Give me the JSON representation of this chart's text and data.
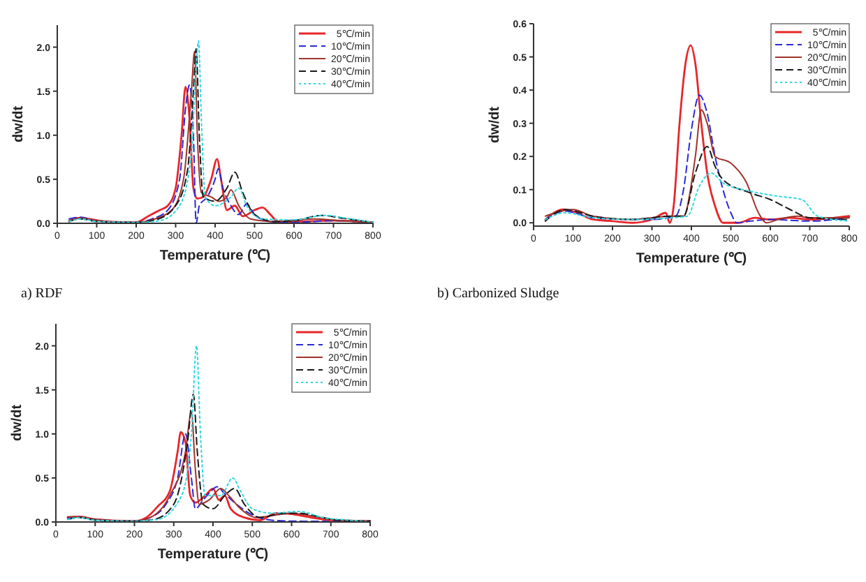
{
  "chart_data": [
    {
      "type": "line",
      "title": "a) RDF",
      "xlabel": "Temperature (℃)",
      "ylabel": "dw/dt",
      "xlim": [
        0,
        800
      ],
      "xticks": [
        0,
        100,
        200,
        300,
        400,
        500,
        600,
        700,
        800
      ],
      "ylim": [
        0,
        2.25
      ],
      "yticks": [
        {
          "value": 0,
          "label": "0.0"
        },
        {
          "value": 0.5,
          "label": "0.5"
        },
        {
          "value": 1,
          "label": "1.0"
        },
        {
          "value": 1.5,
          "label": "1.5"
        },
        {
          "value": 2,
          "label": "2.0"
        }
      ],
      "legend": "top right",
      "grid": false,
      "series": [
        {
          "name": "5℃/min",
          "color": "#e8262a",
          "line_style": "solid",
          "x": [
            30,
            50,
            80,
            120,
            200,
            230,
            260,
            280,
            300,
            315,
            325,
            335,
            345,
            355,
            370,
            390,
            405,
            415,
            430,
            450,
            470,
            500,
            520,
            540,
            560,
            600,
            700,
            800
          ],
          "values": [
            0.02,
            0.06,
            0.05,
            0.02,
            0.01,
            0.08,
            0.15,
            0.2,
            0.4,
            1.0,
            1.55,
            1.2,
            0.4,
            0.28,
            0.3,
            0.5,
            0.73,
            0.5,
            0.15,
            0.2,
            0.08,
            0.15,
            0.18,
            0.1,
            0.02,
            0.02,
            0.03,
            0.01
          ]
        },
        {
          "name": "10℃/min",
          "color": "#2a2ad6",
          "line_style": "dashed",
          "x": [
            30,
            60,
            100,
            200,
            240,
            280,
            310,
            325,
            335,
            345,
            352,
            360,
            380,
            400,
            408,
            420,
            440,
            460,
            480,
            500,
            540,
            600,
            700,
            780,
            800
          ],
          "values": [
            0.05,
            0.07,
            0.03,
            0.01,
            0.05,
            0.15,
            0.5,
            1.3,
            1.57,
            1.0,
            0.0,
            0.2,
            0.3,
            0.5,
            0.62,
            0.4,
            0.2,
            0.1,
            0.22,
            0.1,
            0.02,
            0.01,
            0.03,
            0.01,
            0.0
          ]
        },
        {
          "name": "20℃/min",
          "color": "#a0322a",
          "line_style": "solid",
          "x": [
            30,
            60,
            100,
            200,
            240,
            290,
            320,
            340,
            348,
            355,
            365,
            390,
            410,
            430,
            440,
            460,
            490,
            550,
            650,
            720,
            800
          ],
          "values": [
            0.03,
            0.06,
            0.03,
            0.01,
            0.04,
            0.15,
            0.5,
            1.5,
            1.95,
            1.0,
            0.35,
            0.3,
            0.25,
            0.3,
            0.38,
            0.2,
            0.05,
            0.02,
            0.05,
            0.03,
            0.01
          ]
        },
        {
          "name": "30℃/min",
          "color": "#1a1a1a",
          "line_style": "dashed",
          "x": [
            30,
            60,
            100,
            200,
            250,
            300,
            330,
            345,
            352,
            360,
            370,
            400,
            430,
            450,
            470,
            500,
            550,
            600,
            670,
            720,
            800
          ],
          "values": [
            0.02,
            0.05,
            0.02,
            0.01,
            0.04,
            0.2,
            0.6,
            1.5,
            1.98,
            1.0,
            0.3,
            0.25,
            0.4,
            0.58,
            0.35,
            0.1,
            0.02,
            0.03,
            0.09,
            0.06,
            0.01
          ]
        },
        {
          "name": "40℃/min",
          "color": "#30d8e0",
          "line_style": "dotted",
          "x": [
            30,
            60,
            100,
            200,
            260,
            310,
            340,
            352,
            358,
            365,
            375,
            400,
            440,
            460,
            480,
            520,
            600,
            680,
            730,
            800
          ],
          "values": [
            0.02,
            0.05,
            0.02,
            0.01,
            0.03,
            0.2,
            0.8,
            1.8,
            2.07,
            1.2,
            0.3,
            0.2,
            0.3,
            0.4,
            0.2,
            0.05,
            0.04,
            0.09,
            0.06,
            0.01
          ]
        }
      ]
    },
    {
      "type": "line",
      "title": "b) Carbonized Sludge",
      "xlabel": "Temperature (℃)",
      "ylabel": "dw/dt",
      "xlim": [
        0,
        800
      ],
      "xticks": [
        0,
        100,
        200,
        300,
        400,
        500,
        600,
        700,
        800
      ],
      "ylim": [
        -0.01,
        0.6
      ],
      "yticks": [
        {
          "value": 0,
          "label": "0.0"
        },
        {
          "value": 0.1,
          "label": "0.1"
        },
        {
          "value": 0.2,
          "label": "0.2"
        },
        {
          "value": 0.3,
          "label": "0.3"
        },
        {
          "value": 0.4,
          "label": "0.4"
        },
        {
          "value": 0.5,
          "label": "0.5"
        },
        {
          "value": 0.6,
          "label": "0.6"
        }
      ],
      "legend": "top right",
      "grid": false,
      "series": [
        {
          "name": "5℃/min",
          "color": "#e8262a",
          "line_style": "solid",
          "x": [
            30,
            75,
            110,
            150,
            200,
            250,
            300,
            335,
            345,
            355,
            370,
            385,
            398,
            410,
            425,
            440,
            460,
            480,
            520,
            560,
            600,
            650,
            700,
            800
          ],
          "values": [
            0.01,
            0.04,
            0.03,
            0.01,
            0.005,
            0,
            0.01,
            0.03,
            0.0,
            0.05,
            0.3,
            0.48,
            0.535,
            0.48,
            0.3,
            0.15,
            0.05,
            0.0,
            0.0,
            0.015,
            0.01,
            0.015,
            0.01,
            0.02
          ]
        },
        {
          "name": "10℃/min",
          "color": "#2a2ad6",
          "line_style": "dashed",
          "x": [
            30,
            80,
            150,
            250,
            300,
            360,
            380,
            400,
            420,
            440,
            460,
            480,
            500,
            515,
            550,
            600,
            700,
            800
          ],
          "values": [
            0.01,
            0.035,
            0.015,
            0.01,
            0.01,
            0.02,
            0.1,
            0.28,
            0.385,
            0.33,
            0.2,
            0.1,
            0.03,
            0,
            0.005,
            0.01,
            0.005,
            0.015
          ]
        },
        {
          "name": "20℃/min",
          "color": "#a0322a",
          "line_style": "solid",
          "x": [
            30,
            100,
            150,
            250,
            350,
            380,
            410,
            425,
            440,
            460,
            500,
            540,
            570,
            590,
            620,
            670,
            700,
            800
          ],
          "values": [
            0.02,
            0.04,
            0.02,
            0.01,
            0.02,
            0.02,
            0.2,
            0.34,
            0.3,
            0.2,
            0.18,
            0.12,
            0.03,
            0,
            0.01,
            0.02,
            0.015,
            0.015
          ]
        },
        {
          "name": "30℃/min",
          "color": "#1a1a1a",
          "line_style": "dashed",
          "x": [
            30,
            80,
            150,
            250,
            350,
            380,
            410,
            440,
            460,
            480,
            550,
            600,
            650,
            700,
            800
          ],
          "values": [
            0.005,
            0.04,
            0.02,
            0.01,
            0.02,
            0.02,
            0.15,
            0.23,
            0.17,
            0.13,
            0.09,
            0.07,
            0.04,
            0.015,
            0.01
          ]
        },
        {
          "name": "40℃/min",
          "color": "#30d8e0",
          "line_style": "dotted",
          "x": [
            30,
            80,
            150,
            250,
            350,
            390,
            420,
            450,
            480,
            550,
            620,
            680,
            720,
            800
          ],
          "values": [
            0.01,
            0.03,
            0.015,
            0.01,
            0.015,
            0.02,
            0.11,
            0.15,
            0.12,
            0.095,
            0.08,
            0.07,
            0.02,
            0.005
          ]
        }
      ]
    },
    {
      "type": "line",
      "xlabel": "Temperature (℃)",
      "ylabel": "dw/dt",
      "xlim": [
        0,
        800
      ],
      "xticks": [
        0,
        100,
        200,
        300,
        400,
        500,
        600,
        700,
        800
      ],
      "ylim": [
        0,
        2.25
      ],
      "yticks": [
        {
          "value": 0,
          "label": "0.0"
        },
        {
          "value": 0.5,
          "label": "0.5"
        },
        {
          "value": 1,
          "label": "1.0"
        },
        {
          "value": 1.5,
          "label": "1.5"
        },
        {
          "value": 2,
          "label": "2.0"
        }
      ],
      "legend": "top right",
      "grid": false,
      "series": [
        {
          "name": "5℃/min",
          "color": "#e8262a",
          "line_style": "solid",
          "x": [
            30,
            60,
            100,
            200,
            230,
            260,
            290,
            310,
            318,
            330,
            342,
            355,
            380,
            400,
            415,
            430,
            445,
            480,
            520,
            560,
            600,
            650,
            700,
            800
          ],
          "values": [
            0.05,
            0.06,
            0.03,
            0.01,
            0.05,
            0.18,
            0.35,
            0.8,
            1.02,
            0.9,
            0.3,
            0.22,
            0.3,
            0.38,
            0.25,
            0.3,
            0.15,
            0.05,
            0.02,
            0.1,
            0.09,
            0.05,
            0.02,
            0.01
          ]
        },
        {
          "name": "10℃/min",
          "color": "#2a2ad6",
          "line_style": "dashed",
          "x": [
            30,
            60,
            100,
            200,
            240,
            280,
            310,
            330,
            345,
            355,
            375,
            395,
            410,
            430,
            460,
            500,
            550,
            600,
            800
          ],
          "values": [
            0.04,
            0.06,
            0.03,
            0.01,
            0.05,
            0.2,
            0.5,
            1.0,
            0.5,
            0.15,
            0.25,
            0.35,
            0.4,
            0.32,
            0.2,
            0.08,
            0.02,
            0.01,
            0.005
          ]
        },
        {
          "name": "20℃/min",
          "color": "#a0322a",
          "line_style": "solid",
          "x": [
            30,
            60,
            100,
            200,
            240,
            290,
            330,
            345,
            355,
            365,
            390,
            420,
            440,
            470,
            510,
            560,
            600,
            650,
            700,
            800
          ],
          "values": [
            0.06,
            0.06,
            0.03,
            0.01,
            0.05,
            0.3,
            0.8,
            1.25,
            0.6,
            0.2,
            0.25,
            0.38,
            0.3,
            0.15,
            0.05,
            0.08,
            0.1,
            0.07,
            0.03,
            0.01
          ]
        },
        {
          "name": "30℃/min",
          "color": "#1a1a1a",
          "line_style": "dashed",
          "x": [
            30,
            60,
            100,
            200,
            250,
            300,
            335,
            350,
            360,
            375,
            400,
            430,
            455,
            480,
            520,
            580,
            620,
            660,
            720,
            800
          ],
          "values": [
            0.03,
            0.05,
            0.02,
            0.01,
            0.03,
            0.2,
            0.9,
            1.45,
            0.8,
            0.2,
            0.15,
            0.3,
            0.38,
            0.2,
            0.05,
            0.1,
            0.1,
            0.07,
            0.02,
            0.01
          ]
        },
        {
          "name": "40℃/min",
          "color": "#30d8e0",
          "line_style": "dotted",
          "x": [
            30,
            60,
            100,
            200,
            260,
            320,
            345,
            358,
            368,
            380,
            420,
            450,
            470,
            500,
            550,
            620,
            680,
            750,
            800
          ],
          "values": [
            0.03,
            0.05,
            0.02,
            0.01,
            0.03,
            0.3,
            1.0,
            2.0,
            1.0,
            0.3,
            0.3,
            0.5,
            0.35,
            0.15,
            0.1,
            0.12,
            0.05,
            0.02,
            0.0
          ]
        }
      ]
    }
  ]
}
